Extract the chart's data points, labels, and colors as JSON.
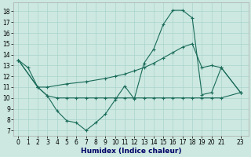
{
  "background_color": "#cce8e0",
  "grid_color": "#aad4cc",
  "line_color": "#1a6b5a",
  "xlabel": "Humidex (Indice chaleur)",
  "xlim": [
    -0.5,
    23.8
  ],
  "ylim": [
    6.5,
    18.8
  ],
  "yticks": [
    7,
    8,
    9,
    10,
    11,
    12,
    13,
    14,
    15,
    16,
    17,
    18
  ],
  "xticks": [
    0,
    1,
    2,
    3,
    4,
    5,
    6,
    7,
    8,
    9,
    10,
    11,
    12,
    13,
    14,
    15,
    16,
    17,
    18,
    19,
    20,
    21,
    23
  ],
  "s1x": [
    0,
    1,
    2,
    3,
    4,
    5,
    6,
    7,
    8,
    9,
    10,
    11,
    12,
    13,
    14,
    15,
    16,
    17,
    18,
    19,
    20,
    21,
    23
  ],
  "s1y": [
    13.5,
    12.8,
    11.0,
    10.2,
    8.8,
    7.9,
    7.7,
    7.0,
    7.7,
    8.5,
    9.8,
    11.1,
    9.9,
    13.2,
    14.5,
    16.8,
    18.1,
    18.1,
    17.4,
    10.3,
    10.5,
    12.8,
    10.5
  ],
  "s2x": [
    0,
    2,
    3,
    4,
    5,
    6,
    7,
    8,
    9,
    10,
    11,
    12,
    13,
    14,
    15,
    16,
    17,
    18,
    19,
    20,
    21,
    23
  ],
  "s2y": [
    13.5,
    11.0,
    10.2,
    10.0,
    10.0,
    10.0,
    10.0,
    10.0,
    10.0,
    10.0,
    10.0,
    10.0,
    10.0,
    10.0,
    10.0,
    10.0,
    10.0,
    10.0,
    10.0,
    10.0,
    10.0,
    10.5
  ],
  "s3x": [
    0,
    2,
    3,
    5,
    7,
    9,
    10,
    11,
    12,
    13,
    14,
    15,
    16,
    17,
    18,
    19,
    20,
    21,
    23
  ],
  "s3y": [
    13.5,
    11.0,
    11.0,
    11.3,
    11.5,
    11.8,
    12.0,
    12.2,
    12.5,
    12.8,
    13.2,
    13.7,
    14.2,
    14.7,
    15.0,
    12.8,
    13.0,
    12.8,
    10.5
  ]
}
